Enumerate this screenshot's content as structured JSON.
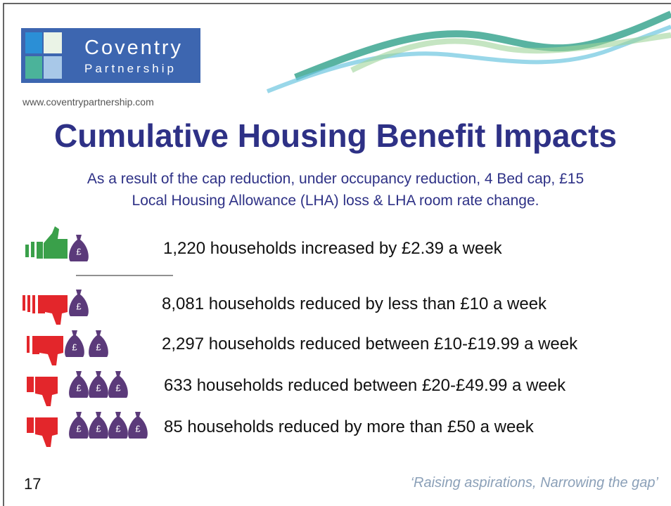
{
  "logo": {
    "line1": "Coventry",
    "line2": "Partnership"
  },
  "website": "www.coventrypartnership.com",
  "title": "Cumulative Housing Benefit Impacts",
  "subtitle": {
    "line1": "As a result of the cap reduction, under occupancy reduction, 4 Bed cap, £15",
    "line2": "Local Housing Allowance (LHA) loss & LHA room rate change."
  },
  "bag_symbol": "£",
  "items": [
    "1,220 households increased by £2.39 a week",
    "8,081 households reduced by less than £10 a week",
    "2,297 households reduced between £10-£19.99 a week",
    "633 households reduced between £20-£49.99 a week",
    "85 households reduced by more than £50 a week"
  ],
  "page_number": "17",
  "tagline": "‘Raising aspirations, Narrowing the gap’"
}
